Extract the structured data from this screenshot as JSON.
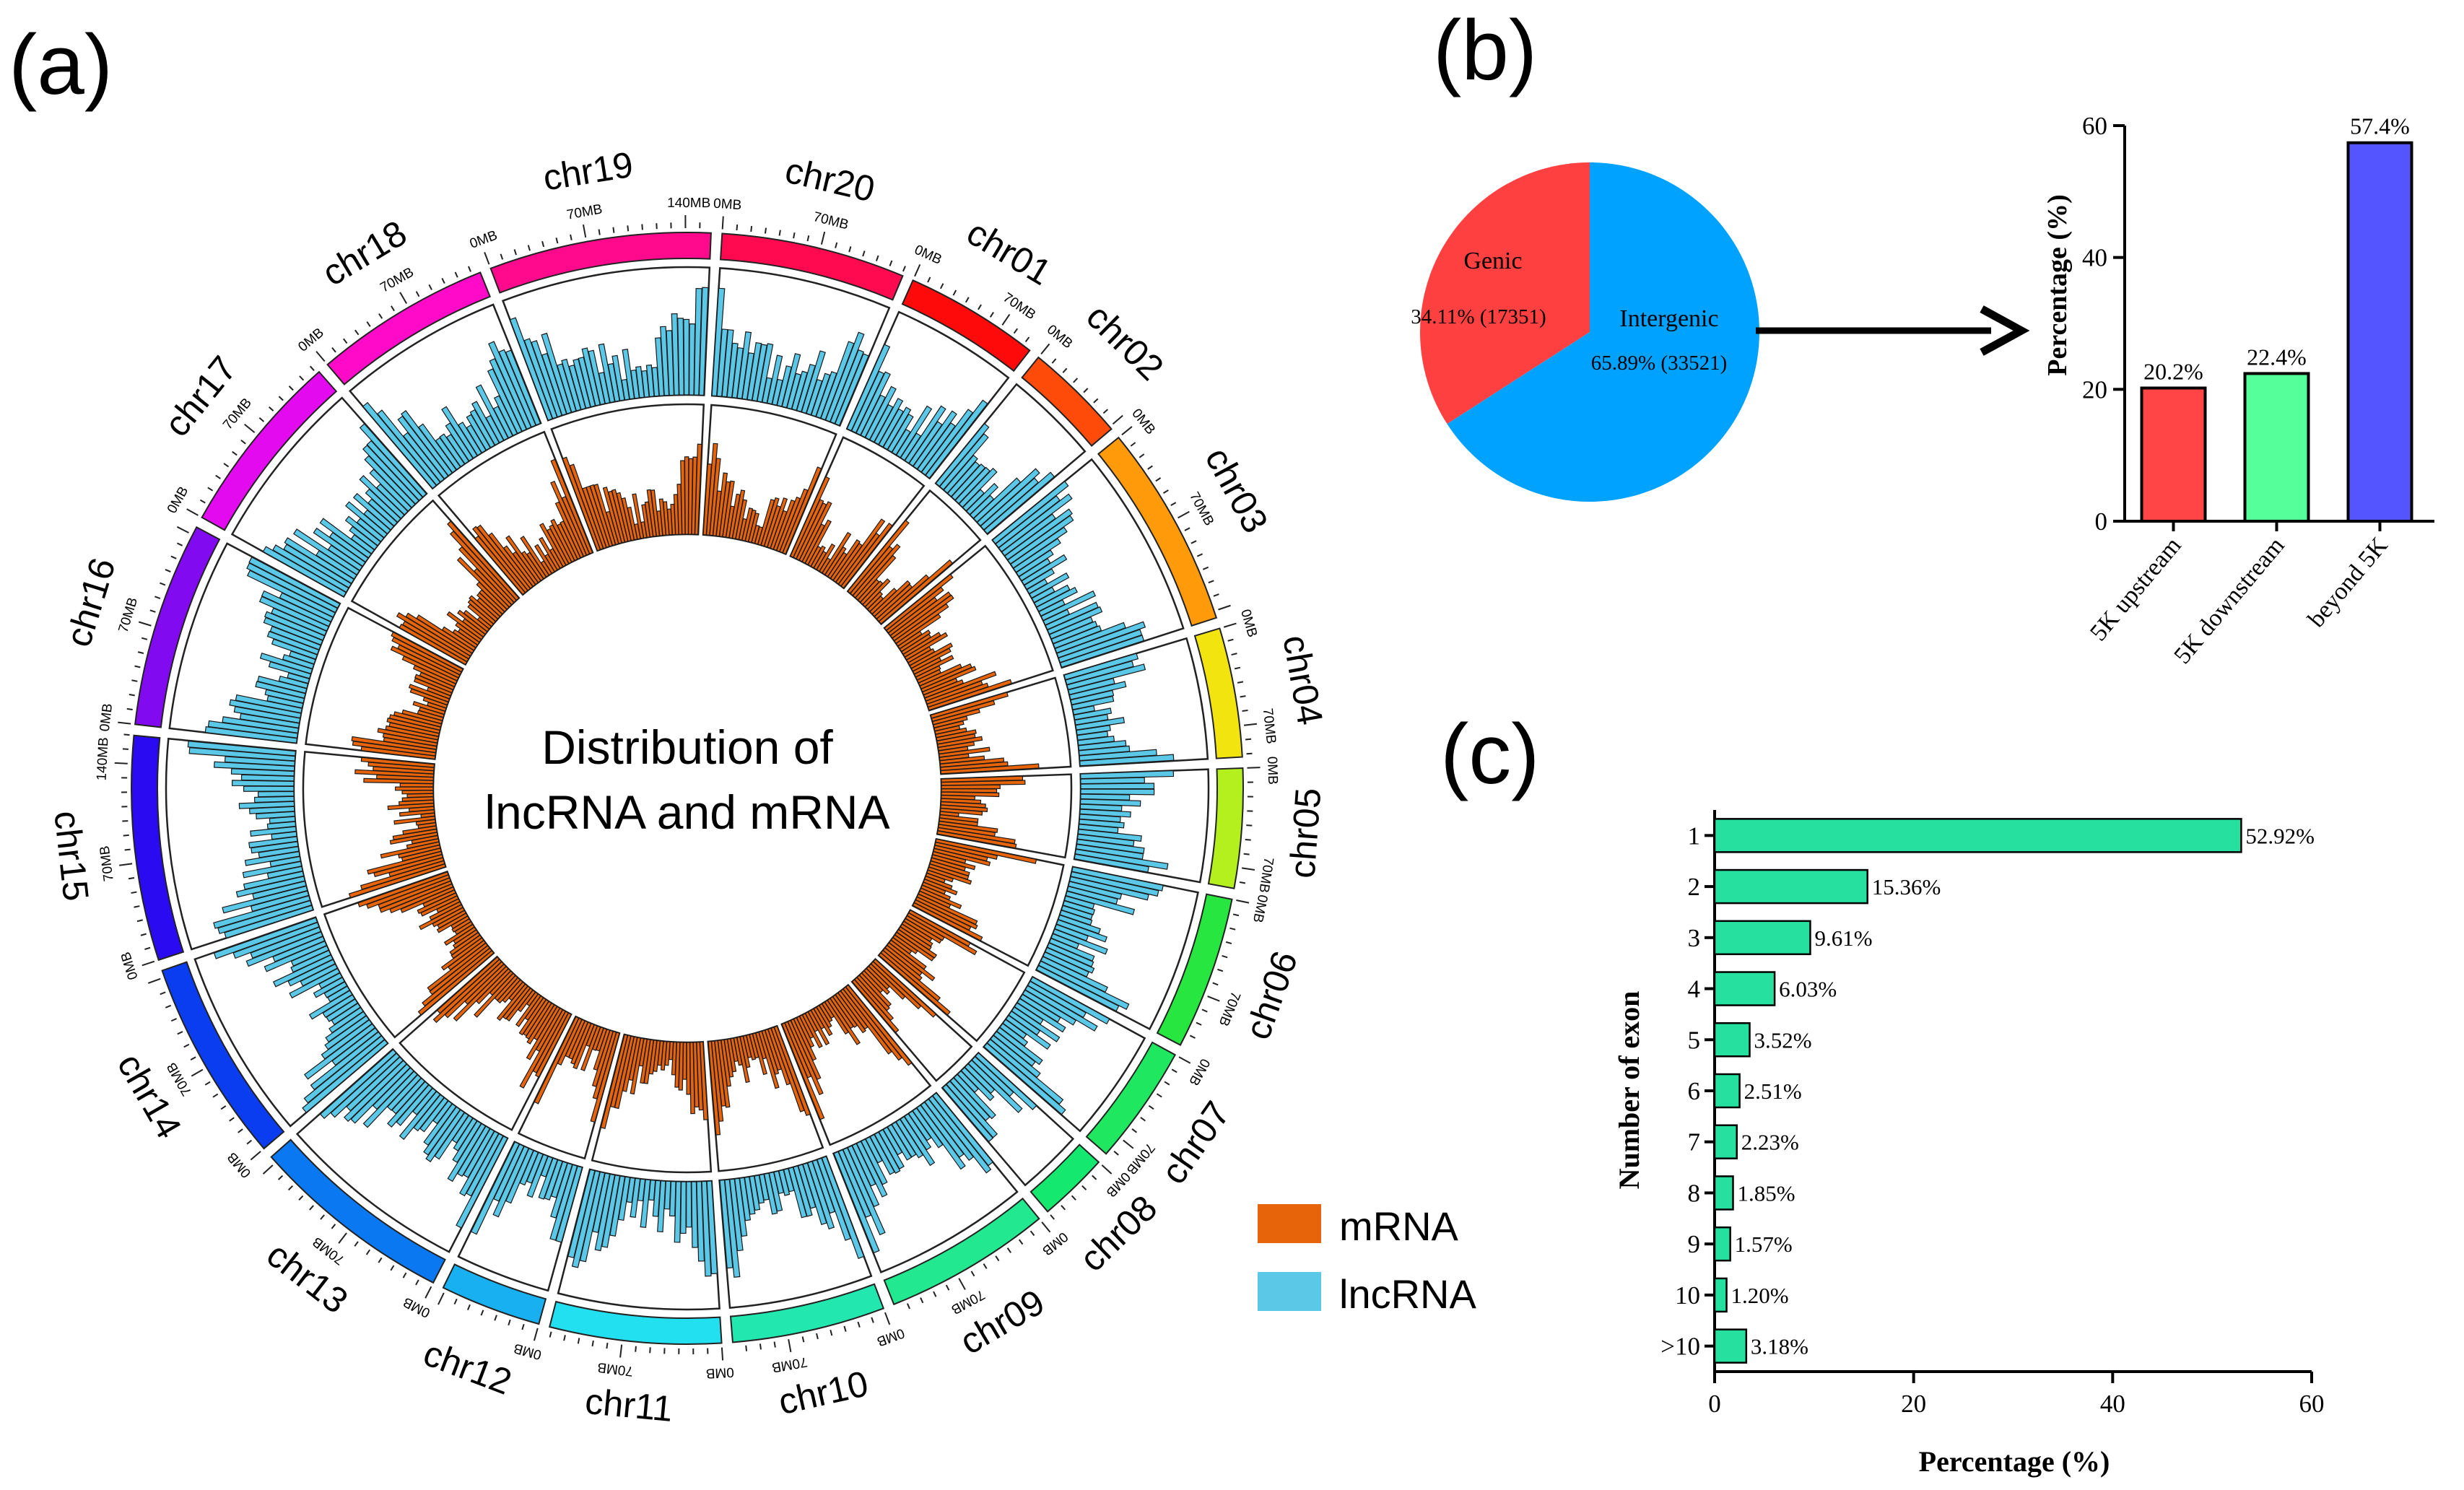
{
  "panel_labels": {
    "a": "(a)",
    "b": "(b)",
    "c": "(c)"
  },
  "colors": {
    "mrna": "#E8640A",
    "lncrna": "#5BC8E8",
    "genic": "#FF4040",
    "intergenic": "#00A2FF",
    "upstream": "#FF4545",
    "downstream": "#55FF99",
    "beyond": "#5555FF",
    "exon_bar": "#26E0A0"
  },
  "chart_data": [
    {
      "type": "circos",
      "title_line1": "Distribution of",
      "title_line2": "lncRNA and mRNA",
      "legend": [
        {
          "label": "mRNA",
          "color": "#E8640A"
        },
        {
          "label": "lncRNA",
          "color": "#5BC8E8"
        }
      ],
      "tick_labels": [
        "0MB",
        "70MB",
        "140MB"
      ],
      "chromosomes": [
        {
          "name": "chr01",
          "length": 96,
          "color": "#FF0A0A"
        },
        {
          "name": "chr02",
          "length": 72,
          "color": "#FF4B0A"
        },
        {
          "name": "chr03",
          "length": 145,
          "color": "#FF9A0A"
        },
        {
          "name": "chr04",
          "length": 92,
          "color": "#F2E40E"
        },
        {
          "name": "chr05",
          "length": 85,
          "color": "#B4F01E"
        },
        {
          "name": "chr06",
          "length": 109,
          "color": "#28E640"
        },
        {
          "name": "chr07",
          "length": 85,
          "color": "#1FE860"
        },
        {
          "name": "chr08",
          "length": 50,
          "color": "#14E86E"
        },
        {
          "name": "chr09",
          "length": 119,
          "color": "#22E890"
        },
        {
          "name": "chr10",
          "length": 109,
          "color": "#22E8B0"
        },
        {
          "name": "chr11",
          "length": 122,
          "color": "#22E0F0"
        },
        {
          "name": "chr12",
          "length": 72,
          "color": "#18B0F0"
        },
        {
          "name": "chr13",
          "length": 145,
          "color": "#0A78F0"
        },
        {
          "name": "chr14",
          "length": 145,
          "color": "#0A3CF0"
        },
        {
          "name": "chr15",
          "length": 160,
          "color": "#2A0AF0"
        },
        {
          "name": "chr16",
          "length": 146,
          "color": "#820AF0"
        },
        {
          "name": "chr17",
          "length": 132,
          "color": "#E40AF0"
        },
        {
          "name": "chr18",
          "length": 126,
          "color": "#FF0AC8"
        },
        {
          "name": "chr19",
          "length": 158,
          "color": "#FF0A8C"
        },
        {
          "name": "chr20",
          "length": 131,
          "color": "#FF0A50"
        }
      ]
    },
    {
      "type": "pie",
      "slices": [
        {
          "label": "Genic",
          "value": 34.11,
          "text": "34.11% (17351)",
          "color": "#FF4040"
        },
        {
          "label": "Intergenic",
          "value": 65.89,
          "text": "65.89% (33521)",
          "color": "#00A2FF"
        }
      ]
    },
    {
      "type": "bar",
      "categories": [
        "5K upstream",
        "5K downstream",
        "beyond 5K"
      ],
      "values": [
        20.2,
        22.4,
        57.4
      ],
      "value_labels": [
        "20.2%",
        "22.4%",
        "57.4%"
      ],
      "colors": [
        "#FF4545",
        "#55FF99",
        "#5555FF"
      ],
      "ylabel": "Percentage (%)",
      "ylim": [
        0,
        60
      ],
      "yticks": [
        "0",
        "20",
        "40",
        "60"
      ]
    },
    {
      "type": "bar",
      "orientation": "horizontal",
      "categories": [
        "1",
        "2",
        "3",
        "4",
        "5",
        "6",
        "7",
        "8",
        "9",
        "10",
        ">10"
      ],
      "values": [
        52.92,
        15.36,
        9.61,
        6.03,
        3.52,
        2.51,
        2.23,
        1.85,
        1.57,
        1.2,
        3.18
      ],
      "value_labels": [
        "52.92%",
        "15.36%",
        "9.61%",
        "6.03%",
        "3.52%",
        "2.51%",
        "2.23%",
        "1.85%",
        "1.57%",
        "1.20%",
        "3.18%"
      ],
      "color": "#26E0A0",
      "xlabel": "Percentage (%)",
      "ylabel": "Number of exon",
      "xlim": [
        0,
        60
      ],
      "xticks": [
        "0",
        "20",
        "40",
        "60"
      ]
    }
  ]
}
